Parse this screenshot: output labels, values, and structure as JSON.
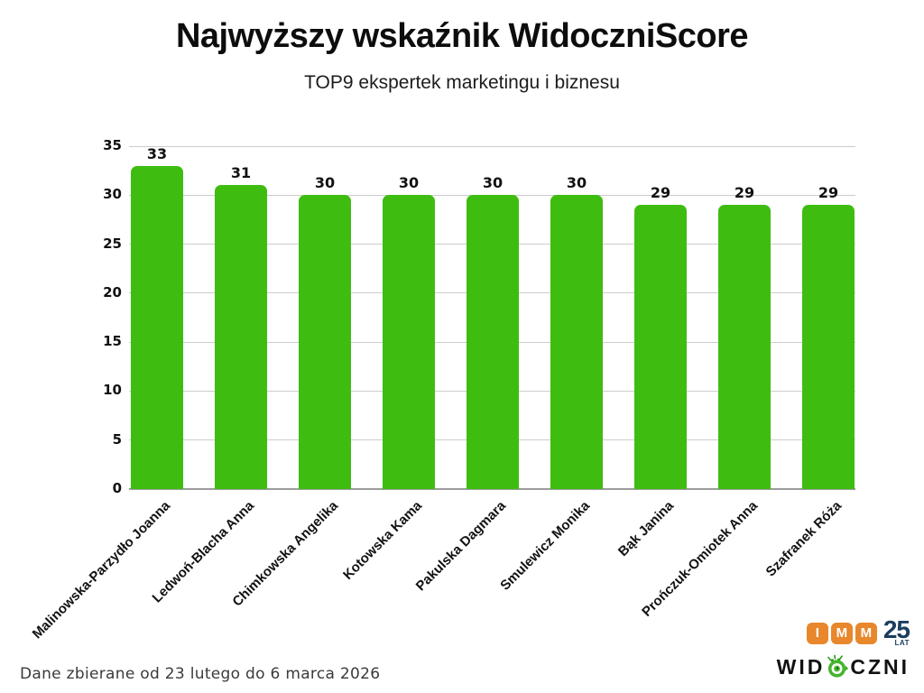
{
  "title": "Najwyższy wskaźnik WidoczniScore",
  "subtitle": "TOP9 ekspertek marketingu i biznesu",
  "footer": "Dane zbierane od 23 lutego do 6 marca 2026",
  "chart_data": {
    "type": "bar",
    "categories": [
      "Malinowska-Parzydło Joanna",
      "Ledwoń-Blacha Anna",
      "Chimkowska Angelika",
      "Kotowska Kama",
      "Pakulska Dagmara",
      "Smulewicz Monika",
      "Bąk Janina",
      "Prończuk-Omiotek Anna",
      "Szafranek Róża"
    ],
    "values": [
      33,
      31,
      30,
      30,
      30,
      30,
      29,
      29,
      29
    ],
    "title": "Najwyższy wskaźnik WidoczniScore",
    "subtitle": "TOP9 ekspertek marketingu i biznesu",
    "xlabel": "",
    "ylabel": "",
    "ylim": [
      0,
      35
    ],
    "yticks": [
      0,
      5,
      10,
      15,
      20,
      25,
      30,
      35
    ],
    "grid": true,
    "legend_position": "none",
    "bar_color": "#3ebd10",
    "gridline_color": "#cccccc",
    "baseline_color": "#9b9b9b",
    "label_color": "#111111"
  },
  "logos": {
    "imm": {
      "letters": [
        "I",
        "M",
        "M"
      ],
      "years": "25",
      "years_label": "LAT",
      "badge_color": "#e8872c",
      "navy_color": "#1c3d5f"
    },
    "widoczni": {
      "part1": "WID",
      "part2": "CZNI",
      "icon": "snail-icon",
      "green": "#46b42e"
    }
  }
}
